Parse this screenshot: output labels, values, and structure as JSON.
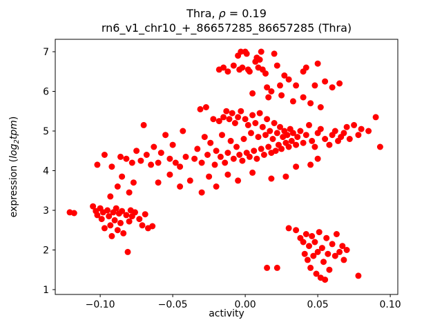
{
  "figure": {
    "title_line1": {
      "prefix": "Thra, ",
      "rho": "ρ",
      "suffix": " = 0.19"
    },
    "title_line2": "rn6_v1_chr10_+_86657285_86657285 (Thra)",
    "xlabel": "activity",
    "ylabel_parts": {
      "prefix": "expression (",
      "log": "log",
      "sub": "2",
      "tpm": "tpm",
      "suffix": ")"
    }
  },
  "chart_data": {
    "type": "scatter",
    "title": "Thra, ρ = 0.19",
    "subtitle": "rn6_v1_chr10_+_86657285_86657285 (Thra)",
    "xlabel": "activity",
    "ylabel": "expression (log2 tpm)",
    "marker_color": "#ff0000",
    "grid": false,
    "xlim": [
      -0.131,
      0.1052
    ],
    "ylim": [
      0.878,
      7.313
    ],
    "xticks": [
      -0.1,
      -0.05,
      0.0,
      0.05,
      0.1
    ],
    "xtick_labels": [
      "−0.10",
      "−0.05",
      "0.00",
      "0.05",
      "0.10"
    ],
    "yticks": [
      1,
      2,
      3,
      4,
      5,
      6,
      7
    ],
    "ytick_labels": [
      "1",
      "2",
      "3",
      "4",
      "5",
      "6",
      "7"
    ],
    "points": [
      [
        -0.121,
        2.95
      ],
      [
        -0.118,
        2.93
      ],
      [
        -0.105,
        3.1
      ],
      [
        -0.103,
        2.98
      ],
      [
        -0.102,
        2.88
      ],
      [
        -0.1,
        3.05
      ],
      [
        -0.099,
        2.78
      ],
      [
        -0.098,
        2.95
      ],
      [
        -0.097,
        2.55
      ],
      [
        -0.095,
        3.0
      ],
      [
        -0.094,
        2.85
      ],
      [
        -0.093,
        2.62
      ],
      [
        -0.092,
        2.35
      ],
      [
        -0.091,
        2.95
      ],
      [
        -0.09,
        2.75
      ],
      [
        -0.089,
        3.05
      ],
      [
        -0.088,
        2.5
      ],
      [
        -0.087,
        2.92
      ],
      [
        -0.086,
        2.68
      ],
      [
        -0.085,
        2.98
      ],
      [
        -0.084,
        2.42
      ],
      [
        -0.082,
        2.88
      ],
      [
        -0.081,
        1.95
      ],
      [
        -0.08,
        2.72
      ],
      [
        -0.079,
        3.0
      ],
      [
        -0.078,
        2.85
      ],
      [
        -0.076,
        2.95
      ],
      [
        -0.073,
        2.78
      ],
      [
        -0.071,
        2.62
      ],
      [
        -0.069,
        2.9
      ],
      [
        -0.067,
        2.55
      ],
      [
        -0.064,
        2.6
      ],
      [
        -0.093,
        3.35
      ],
      [
        -0.088,
        3.6
      ],
      [
        -0.085,
        3.85
      ],
      [
        -0.08,
        3.45
      ],
      [
        -0.077,
        3.7
      ],
      [
        -0.102,
        4.15
      ],
      [
        -0.097,
        4.4
      ],
      [
        -0.092,
        4.1
      ],
      [
        -0.086,
        4.35
      ],
      [
        -0.082,
        4.3
      ],
      [
        -0.078,
        4.2
      ],
      [
        -0.075,
        4.5
      ],
      [
        -0.072,
        4.25
      ],
      [
        -0.07,
        5.15
      ],
      [
        -0.068,
        4.4
      ],
      [
        -0.065,
        4.15
      ],
      [
        -0.063,
        4.6
      ],
      [
        -0.06,
        4.2
      ],
      [
        -0.058,
        4.45
      ],
      [
        -0.055,
        4.9
      ],
      [
        -0.052,
        4.3
      ],
      [
        -0.05,
        4.65
      ],
      [
        -0.048,
        4.2
      ],
      [
        -0.045,
        4.1
      ],
      [
        -0.043,
        5.0
      ],
      [
        -0.041,
        4.35
      ],
      [
        -0.06,
        3.7
      ],
      [
        -0.052,
        3.9
      ],
      [
        -0.045,
        3.6
      ],
      [
        -0.038,
        3.75
      ],
      [
        -0.03,
        3.45
      ],
      [
        -0.025,
        3.85
      ],
      [
        -0.02,
        3.6
      ],
      [
        -0.012,
        3.9
      ],
      [
        -0.005,
        3.75
      ],
      [
        0.005,
        3.95
      ],
      [
        0.018,
        3.8
      ],
      [
        -0.035,
        4.3
      ],
      [
        -0.033,
        4.55
      ],
      [
        -0.031,
        5.55
      ],
      [
        -0.03,
        4.2
      ],
      [
        -0.028,
        4.85
      ],
      [
        -0.027,
        5.6
      ],
      [
        -0.026,
        4.4
      ],
      [
        -0.024,
        4.7
      ],
      [
        -0.022,
        5.3
      ],
      [
        -0.021,
        4.15
      ],
      [
        -0.02,
        4.5
      ],
      [
        -0.018,
        5.25
      ],
      [
        -0.017,
        4.35
      ],
      [
        -0.016,
        4.9
      ],
      [
        -0.015,
        5.35
      ],
      [
        -0.014,
        4.2
      ],
      [
        -0.013,
        5.5
      ],
      [
        -0.012,
        4.45
      ],
      [
        -0.011,
        5.3
      ],
      [
        -0.01,
        4.75
      ],
      [
        -0.009,
        5.45
      ],
      [
        -0.008,
        4.3
      ],
      [
        -0.007,
        5.2
      ],
      [
        -0.006,
        4.6
      ],
      [
        -0.005,
        5.35
      ],
      [
        -0.004,
        4.4
      ],
      [
        -0.003,
        5.5
      ],
      [
        -0.002,
        4.25
      ],
      [
        -0.001,
        4.8
      ],
      [
        0.0,
        5.3
      ],
      [
        0.001,
        4.45
      ],
      [
        0.002,
        5.15
      ],
      [
        0.003,
        4.35
      ],
      [
        0.004,
        4.95
      ],
      [
        0.005,
        5.4
      ],
      [
        0.006,
        4.5
      ],
      [
        0.007,
        5.2
      ],
      [
        0.008,
        4.3
      ],
      [
        0.009,
        4.85
      ],
      [
        0.01,
        5.45
      ],
      [
        0.011,
        4.55
      ],
      [
        0.012,
        5.1
      ],
      [
        0.013,
        4.4
      ],
      [
        0.014,
        4.9
      ],
      [
        0.015,
        5.3
      ],
      [
        0.016,
        4.6
      ],
      [
        0.017,
        5.0
      ],
      [
        0.018,
        4.45
      ],
      [
        0.019,
        4.8
      ],
      [
        0.02,
        5.2
      ],
      [
        0.021,
        4.5
      ],
      [
        0.022,
        4.95
      ],
      [
        0.023,
        4.65
      ],
      [
        0.024,
        5.1
      ],
      [
        0.025,
        4.55
      ],
      [
        0.026,
        4.85
      ],
      [
        0.027,
        5.0
      ],
      [
        0.028,
        4.7
      ],
      [
        0.029,
        4.9
      ],
      [
        0.03,
        4.6
      ],
      [
        0.031,
        5.05
      ],
      [
        0.032,
        4.75
      ],
      [
        0.033,
        4.95
      ],
      [
        0.035,
        4.65
      ],
      [
        0.036,
        4.85
      ],
      [
        0.038,
        5.0
      ],
      [
        0.04,
        4.7
      ],
      [
        0.042,
        4.9
      ],
      [
        0.044,
        5.15
      ],
      [
        0.046,
        4.75
      ],
      [
        0.048,
        4.6
      ],
      [
        0.05,
        4.95
      ],
      [
        0.052,
        5.05
      ],
      [
        0.055,
        4.8
      ],
      [
        0.058,
        4.65
      ],
      [
        0.06,
        4.9
      ],
      [
        0.062,
        5.0
      ],
      [
        0.064,
        4.75
      ],
      [
        0.066,
        4.85
      ],
      [
        0.068,
        4.95
      ],
      [
        0.07,
        5.1
      ],
      [
        0.072,
        4.8
      ],
      [
        0.075,
        5.15
      ],
      [
        0.078,
        4.9
      ],
      [
        0.08,
        5.05
      ],
      [
        0.085,
        5.0
      ],
      [
        0.09,
        5.35
      ],
      [
        0.093,
        4.6
      ],
      [
        0.035,
        4.1
      ],
      [
        0.045,
        4.15
      ],
      [
        0.028,
        3.85
      ],
      [
        0.05,
        4.3
      ],
      [
        -0.018,
        6.55
      ],
      [
        -0.015,
        6.6
      ],
      [
        -0.012,
        6.5
      ],
      [
        -0.008,
        6.65
      ],
      [
        -0.005,
        6.9
      ],
      [
        -0.004,
        6.55
      ],
      [
        -0.003,
        7.0
      ],
      [
        -0.002,
        6.6
      ],
      [
        0.0,
        7.0
      ],
      [
        0.001,
        6.95
      ],
      [
        0.002,
        6.55
      ],
      [
        0.003,
        6.5
      ],
      [
        0.005,
        5.95
      ],
      [
        0.007,
        6.75
      ],
      [
        0.008,
        6.85
      ],
      [
        0.009,
        6.6
      ],
      [
        0.01,
        6.8
      ],
      [
        0.011,
        7.0
      ],
      [
        0.012,
        6.55
      ],
      [
        0.014,
        6.45
      ],
      [
        0.015,
        6.1
      ],
      [
        0.016,
        5.85
      ],
      [
        0.018,
        6.0
      ],
      [
        0.02,
        6.95
      ],
      [
        0.022,
        6.65
      ],
      [
        0.024,
        6.15
      ],
      [
        0.025,
        5.9
      ],
      [
        0.027,
        6.4
      ],
      [
        0.03,
        6.3
      ],
      [
        0.033,
        5.75
      ],
      [
        0.035,
        6.15
      ],
      [
        0.04,
        6.5
      ],
      [
        0.04,
        5.85
      ],
      [
        0.042,
        6.6
      ],
      [
        0.045,
        5.7
      ],
      [
        0.048,
        6.15
      ],
      [
        0.05,
        6.7
      ],
      [
        0.052,
        5.6
      ],
      [
        0.055,
        6.25
      ],
      [
        0.06,
        6.1
      ],
      [
        0.065,
        6.2
      ],
      [
        0.015,
        1.55
      ],
      [
        0.022,
        1.55
      ],
      [
        0.03,
        2.55
      ],
      [
        0.035,
        2.5
      ],
      [
        0.038,
        2.3
      ],
      [
        0.04,
        2.2
      ],
      [
        0.041,
        1.9
      ],
      [
        0.042,
        2.4
      ],
      [
        0.043,
        1.75
      ],
      [
        0.044,
        2.1
      ],
      [
        0.045,
        1.55
      ],
      [
        0.046,
        2.35
      ],
      [
        0.047,
        1.85
      ],
      [
        0.048,
        2.2
      ],
      [
        0.049,
        1.4
      ],
      [
        0.05,
        1.95
      ],
      [
        0.051,
        2.45
      ],
      [
        0.052,
        1.3
      ],
      [
        0.053,
        2.05
      ],
      [
        0.054,
        1.7
      ],
      [
        0.055,
        1.25
      ],
      [
        0.056,
        2.3
      ],
      [
        0.057,
        1.9
      ],
      [
        0.058,
        1.5
      ],
      [
        0.06,
        2.15
      ],
      [
        0.062,
        1.85
      ],
      [
        0.063,
        2.4
      ],
      [
        0.065,
        1.95
      ],
      [
        0.067,
        2.1
      ],
      [
        0.068,
        1.75
      ],
      [
        0.07,
        2.0
      ],
      [
        0.078,
        1.35
      ]
    ]
  }
}
